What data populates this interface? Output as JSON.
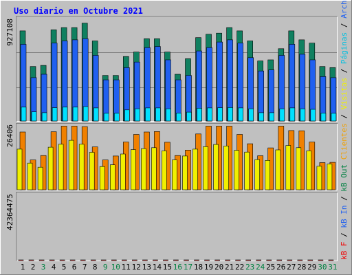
{
  "chart_data": [
    {
      "type": "bar",
      "title": "Uso diario en Octubre 2021",
      "panel": "top",
      "ylim": [
        0,
        927108
      ],
      "y_tick_label": "927108",
      "categories": [
        "1",
        "2",
        "3",
        "4",
        "5",
        "6",
        "7",
        "8",
        "9",
        "10",
        "11",
        "12",
        "13",
        "14",
        "15",
        "16",
        "17",
        "18",
        "19",
        "20",
        "21",
        "22",
        "23",
        "24",
        "25",
        "26",
        "27",
        "28",
        "29",
        "30",
        "31"
      ],
      "series": [
        {
          "name": "Accesos",
          "color": "#108060",
          "values": [
            810000,
            490000,
            500000,
            820000,
            840000,
            840000,
            880000,
            720000,
            410000,
            410000,
            580000,
            620000,
            740000,
            740000,
            620000,
            420000,
            560000,
            750000,
            780000,
            790000,
            840000,
            810000,
            720000,
            540000,
            550000,
            650000,
            810000,
            730000,
            700000,
            490000,
            480000
          ]
        },
        {
          "name": "Archivos",
          "color": "#2060f0",
          "values": [
            690000,
            390000,
            420000,
            700000,
            720000,
            730000,
            740000,
            590000,
            370000,
            370000,
            480000,
            530000,
            660000,
            670000,
            550000,
            370000,
            410000,
            630000,
            660000,
            710000,
            730000,
            700000,
            570000,
            450000,
            460000,
            590000,
            690000,
            600000,
            550000,
            400000,
            390000
          ]
        },
        {
          "name": "Páginas",
          "color": "#00e0ff",
          "values": [
            125000,
            82000,
            75000,
            120000,
            125000,
            125000,
            130000,
            118000,
            70000,
            70000,
            100000,
            110000,
            118000,
            118000,
            110000,
            72000,
            80000,
            115000,
            118000,
            120000,
            122000,
            118000,
            110000,
            75000,
            75000,
            110000,
            118000,
            110000,
            105000,
            72000,
            70000
          ]
        }
      ]
    },
    {
      "type": "bar",
      "panel": "middle",
      "ylim": [
        0,
        26406
      ],
      "y_tick_label": "26406",
      "categories": [
        "1",
        "2",
        "3",
        "4",
        "5",
        "6",
        "7",
        "8",
        "9",
        "10",
        "11",
        "12",
        "13",
        "14",
        "15",
        "16",
        "17",
        "18",
        "19",
        "20",
        "21",
        "22",
        "23",
        "24",
        "25",
        "26",
        "27",
        "28",
        "29",
        "30",
        "31"
      ],
      "series": [
        {
          "name": "Visitas",
          "color": "#f08000",
          "values": [
            23600,
            12200,
            14000,
            23700,
            26000,
            26000,
            25800,
            17500,
            12200,
            13800,
            19500,
            22600,
            23600,
            23800,
            19400,
            14000,
            16200,
            22800,
            26000,
            26000,
            26000,
            22600,
            18800,
            13900,
            17100,
            26000,
            24200,
            24100,
            19500,
            11100,
            11200
          ]
        },
        {
          "name": "Clientes",
          "color": "#f0f000",
          "values": [
            16600,
            10900,
            9200,
            17400,
            18600,
            20200,
            18600,
            15300,
            9500,
            10200,
            14600,
            16400,
            16800,
            17200,
            15900,
            12200,
            13800,
            16600,
            17600,
            18500,
            17900,
            16100,
            15400,
            12300,
            12000,
            16300,
            18100,
            17200,
            15900,
            9600,
            10500
          ]
        }
      ]
    },
    {
      "type": "bar",
      "panel": "bottom",
      "ylim": [
        0,
        42364475
      ],
      "y_tick_label": "42364475",
      "categories": [
        "1",
        "2",
        "3",
        "4",
        "5",
        "6",
        "7",
        "8",
        "9",
        "10",
        "11",
        "12",
        "13",
        "14",
        "15",
        "16",
        "17",
        "18",
        "19",
        "20",
        "21",
        "22",
        "23",
        "24",
        "25",
        "26",
        "27",
        "28",
        "29",
        "30",
        "31"
      ],
      "series": [
        {
          "name": "kB F",
          "color": "#f00000",
          "values": [
            30900,
            20500,
            22900,
            37200,
            34500,
            33100,
            33300,
            26500,
            20200,
            19300,
            28000,
            33600,
            37900,
            30700,
            30700,
            22100,
            24600,
            29100,
            31700,
            39000,
            34500,
            30900,
            24300,
            22800,
            31700,
            36400,
            29900,
            30900,
            27000,
            17700,
            19600
          ]
        }
      ]
    }
  ],
  "title": "Uso diario en Octubre 2021",
  "x_labels": [
    {
      "text": "1",
      "color": "#000000"
    },
    {
      "text": "2",
      "color": "#000000"
    },
    {
      "text": "3",
      "color": "#008040"
    },
    {
      "text": "4",
      "color": "#000000"
    },
    {
      "text": "5",
      "color": "#000000"
    },
    {
      "text": "6",
      "color": "#000000"
    },
    {
      "text": "7",
      "color": "#000000"
    },
    {
      "text": "8",
      "color": "#000000"
    },
    {
      "text": "9",
      "color": "#008040"
    },
    {
      "text": "10",
      "color": "#008040"
    },
    {
      "text": "11",
      "color": "#000000"
    },
    {
      "text": "12",
      "color": "#000000"
    },
    {
      "text": "13",
      "color": "#000000"
    },
    {
      "text": "14",
      "color": "#000000"
    },
    {
      "text": "15",
      "color": "#000000"
    },
    {
      "text": "16",
      "color": "#008040"
    },
    {
      "text": "17",
      "color": "#008040"
    },
    {
      "text": "18",
      "color": "#000000"
    },
    {
      "text": "19",
      "color": "#000000"
    },
    {
      "text": "20",
      "color": "#000000"
    },
    {
      "text": "21",
      "color": "#000000"
    },
    {
      "text": "22",
      "color": "#000000"
    },
    {
      "text": "23",
      "color": "#008040"
    },
    {
      "text": "24",
      "color": "#008040"
    },
    {
      "text": "25",
      "color": "#000000"
    },
    {
      "text": "26",
      "color": "#000000"
    },
    {
      "text": "27",
      "color": "#000000"
    },
    {
      "text": "28",
      "color": "#000000"
    },
    {
      "text": "29",
      "color": "#000000"
    },
    {
      "text": "30",
      "color": "#008040"
    },
    {
      "text": "31",
      "color": "#008040"
    }
  ],
  "right_legend": [
    {
      "text": "kB F",
      "color": "#f00000"
    },
    {
      "text": " / ",
      "color": "#000000"
    },
    {
      "text": "kB In",
      "color": "#2060f0"
    },
    {
      "text": " / ",
      "color": "#000000"
    },
    {
      "text": "kB Out",
      "color": "#008040"
    },
    {
      "text": " ",
      "color": "#000000"
    },
    {
      "text": "Clientes",
      "color": "#f0a000"
    },
    {
      "text": " / ",
      "color": "#000000"
    },
    {
      "text": "Visitas",
      "color": "#f0f000"
    },
    {
      "text": " / ",
      "color": "#000000"
    },
    {
      "text": "Páginas",
      "color": "#00c0e0"
    },
    {
      "text": " / ",
      "color": "#000000"
    },
    {
      "text": "Archivos",
      "color": "#2060f0"
    },
    {
      "text": " / ",
      "color": "#000000"
    },
    {
      "text": "Accesos",
      "color": "#108060"
    }
  ],
  "colors": {
    "background": "#c0c0c0",
    "title": "#0000ff",
    "grid": "#808080",
    "frame_light": "#ffffff",
    "frame_dark": "#808080"
  }
}
